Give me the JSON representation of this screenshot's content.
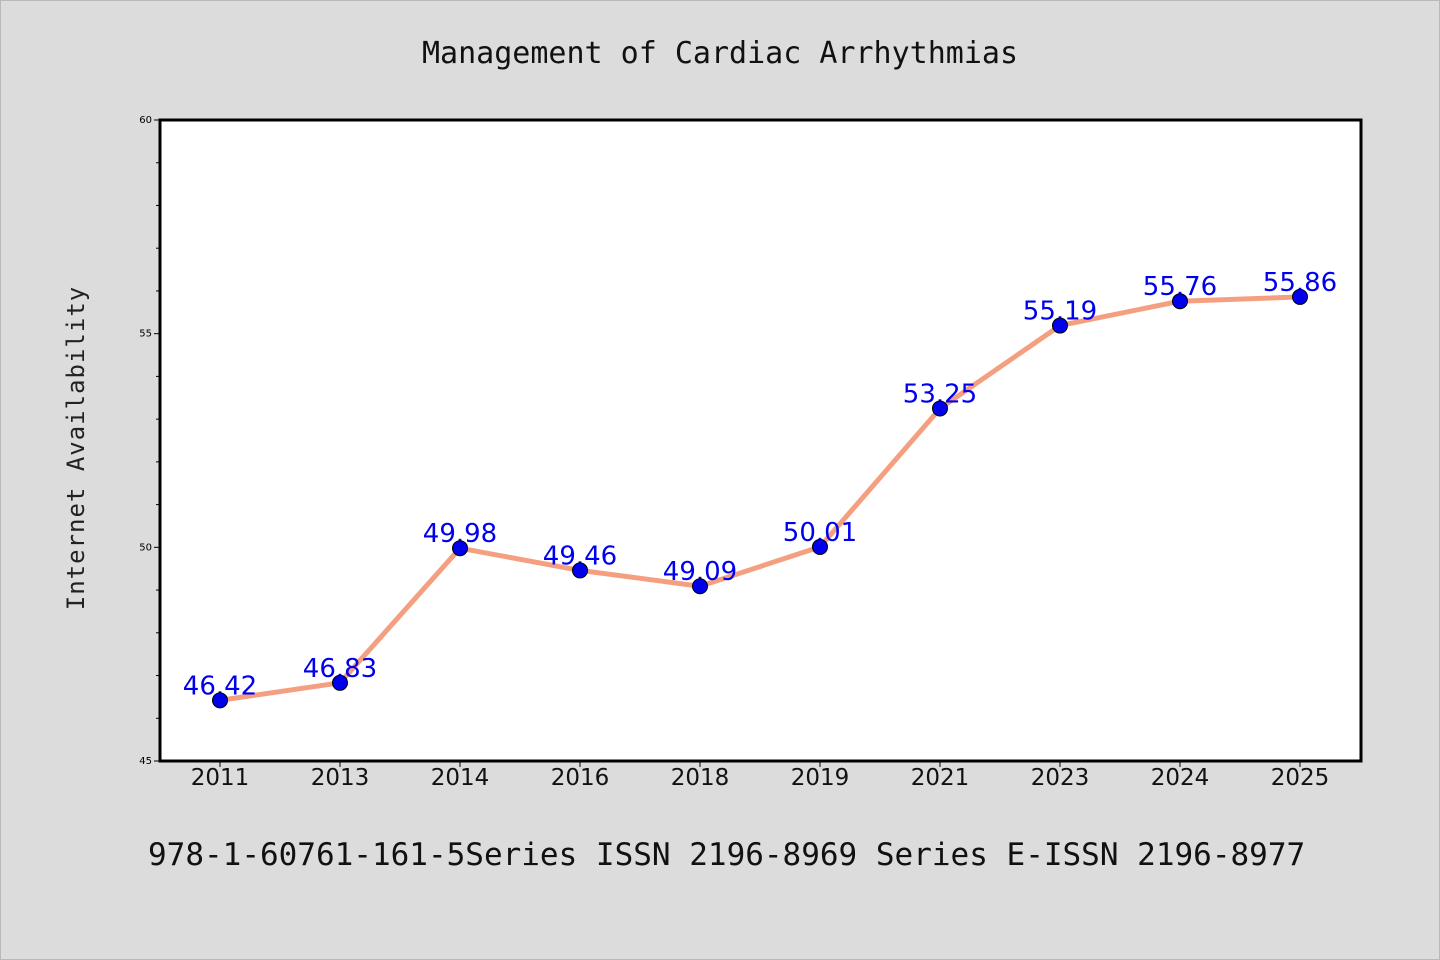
{
  "chart_data": {
    "type": "line",
    "title": "Management of Cardiac Arrhythmias",
    "xlabel": "",
    "ylabel": "Internet Availability",
    "categories": [
      "2011",
      "2013",
      "2014",
      "2016",
      "2018",
      "2019",
      "2021",
      "2023",
      "2024",
      "2025"
    ],
    "series": [
      {
        "values": [
          46.42,
          46.83,
          49.98,
          49.46,
          49.09,
          50.01,
          53.25,
          55.19,
          55.76,
          55.86
        ],
        "labels": [
          "46.42",
          "46.83",
          "49.98",
          "49.46",
          "49.09",
          "50.01",
          "53.25",
          "55.19",
          "55.76",
          "55.86"
        ]
      }
    ],
    "ylim": [
      45,
      60
    ],
    "y_ticks": [
      "45",
      "50",
      "55",
      "60"
    ],
    "grid": false,
    "line_color": "#f4a080",
    "marker_color": "#0000ee",
    "label_color": "#0000ee",
    "background_color": "#dcdcdc",
    "plot_background": "#ffffff"
  },
  "footer_text": "978-1-60761-161-5Series ISSN 2196-8969 Series E-ISSN 2196-8977"
}
